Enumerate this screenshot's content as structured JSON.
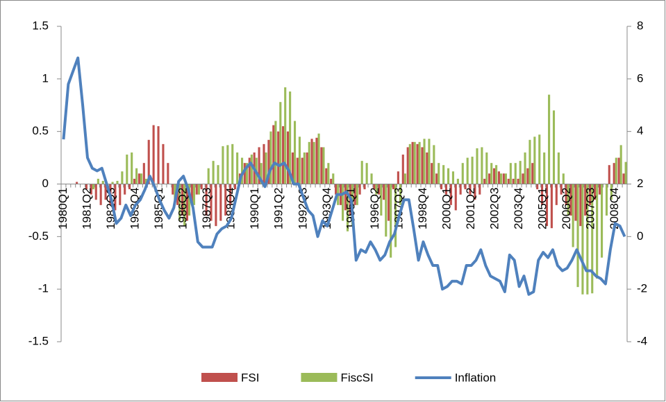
{
  "chart_data": {
    "type": "bar-line",
    "categories": [
      "1980Q1",
      null,
      null,
      null,
      null,
      "1981Q2",
      null,
      null,
      null,
      null,
      "1982Q3",
      null,
      null,
      null,
      null,
      "1983Q4",
      null,
      null,
      null,
      null,
      "1985Q1",
      null,
      null,
      null,
      null,
      "1986Q2",
      null,
      null,
      null,
      null,
      "1987Q3",
      null,
      null,
      null,
      null,
      "1988Q4",
      null,
      null,
      null,
      null,
      "1990Q1",
      null,
      null,
      null,
      null,
      "1991Q2",
      null,
      null,
      null,
      null,
      "1992Q3",
      null,
      null,
      null,
      null,
      "1993Q4",
      null,
      null,
      null,
      null,
      "1995Q1",
      null,
      null,
      null,
      null,
      "1996Q2",
      null,
      null,
      null,
      null,
      "1997Q3",
      null,
      null,
      null,
      null,
      "1998Q4",
      null,
      null,
      null,
      null,
      "2000Q1",
      null,
      null,
      null,
      null,
      "2001Q2",
      null,
      null,
      null,
      null,
      "2002Q3",
      null,
      null,
      null,
      null,
      "2003Q4",
      null,
      null,
      null,
      null,
      "2005Q1",
      null,
      null,
      null,
      null,
      "2006Q2",
      null,
      null,
      null,
      null,
      "2007Q3",
      null,
      null,
      null,
      null,
      "2008Q4",
      null,
      null
    ],
    "series": [
      {
        "name": "FSI",
        "color": "#c0504d",
        "kind": "bar",
        "values": [
          0,
          0,
          0,
          0.02,
          0,
          -0.05,
          -0.1,
          -0.15,
          -0.2,
          -0.15,
          -0.2,
          -0.25,
          -0.2,
          -0.1,
          -0.05,
          0.05,
          0.1,
          0.2,
          0.42,
          0.56,
          0.55,
          0.38,
          0.2,
          -0.1,
          -0.2,
          -0.3,
          -0.35,
          -0.2,
          -0.1,
          -0.05,
          -0.3,
          -0.35,
          -0.4,
          -0.35,
          -0.3,
          -0.2,
          -0.05,
          0.1,
          0.2,
          0.25,
          0.3,
          0.35,
          0.38,
          0.42,
          0.56,
          0.5,
          0.55,
          0.5,
          0.3,
          0.25,
          0.25,
          0.3,
          0.43,
          0.44,
          0.35,
          0.15,
          0.05,
          -0.1,
          -0.2,
          -0.25,
          -0.3,
          -0.2,
          -0.1,
          -0.05,
          0,
          -0.05,
          -0.1,
          -0.15,
          -0.35,
          -0.05,
          0.12,
          0.28,
          0.35,
          0.4,
          0.38,
          0.35,
          0.3,
          0.2,
          0.1,
          -0.05,
          -0.1,
          -0.2,
          -0.25,
          -0.1,
          -0.05,
          -0.1,
          -0.15,
          -0.1,
          0.05,
          0.1,
          0.15,
          0.12,
          0.1,
          0.05,
          0.05,
          0.05,
          0.1,
          0.15,
          0.2,
          -0.05,
          -0.2,
          -0.4,
          -0.42,
          -0.2,
          -0.1,
          -0.2,
          -0.3,
          -0.35,
          -0.4,
          -0.3,
          -0.2,
          -0.15,
          -0.1,
          0,
          0.18,
          0.2,
          0.25,
          0.1
        ]
      },
      {
        "name": "FiscSI",
        "color": "#9bbb59",
        "kind": "bar",
        "values": [
          0,
          0,
          0,
          0,
          0,
          0,
          -0.05,
          0.05,
          0.03,
          0,
          0.02,
          0.03,
          0.12,
          0.28,
          0.3,
          0.15,
          0.1,
          0.05,
          0,
          0,
          0,
          0,
          0,
          -0.15,
          -0.35,
          -0.4,
          -0.3,
          -0.2,
          -0.1,
          0,
          0.15,
          0.22,
          0.18,
          0.36,
          0.37,
          0.38,
          0.3,
          0.25,
          0.2,
          0.28,
          0.25,
          0.2,
          0.3,
          0.5,
          0.6,
          0.78,
          0.92,
          0.88,
          0.6,
          0.45,
          0.3,
          0.4,
          0.4,
          0.48,
          0.35,
          0.2,
          0.1,
          -0.2,
          -0.35,
          -0.45,
          -0.4,
          -0.2,
          0.22,
          0.2,
          0.1,
          -0.1,
          -0.3,
          -0.5,
          -0.7,
          -0.6,
          -0.2,
          0.1,
          0.38,
          0.4,
          0.4,
          0.43,
          0.43,
          0.37,
          0.2,
          0.18,
          0.15,
          0.12,
          0.05,
          0.2,
          0.25,
          0.26,
          0.34,
          0.35,
          0.3,
          0.2,
          0.18,
          0.1,
          0.1,
          0.2,
          0.2,
          0.22,
          0.3,
          0.42,
          0.45,
          0.47,
          0.3,
          0.85,
          0.7,
          0.3,
          0.1,
          -0.3,
          -0.6,
          -0.98,
          -1.05,
          -1.05,
          -1.04,
          -0.9,
          -0.7,
          -0.3,
          -0.15,
          0.25,
          0.37,
          0.21
        ]
      },
      {
        "name": "Inflation",
        "color": "#4f81bd",
        "kind": "line",
        "axis": "y2",
        "values": [
          3.7,
          5.8,
          6.3,
          6.8,
          5.0,
          3.0,
          2.6,
          2.5,
          2.6,
          2.0,
          1.4,
          0.5,
          0.7,
          1.2,
          0.8,
          1.2,
          1.4,
          1.8,
          2.3,
          1.9,
          1.4,
          1.0,
          0.7,
          1.1,
          2.1,
          2.3,
          1.8,
          1.1,
          -0.2,
          -0.4,
          -0.4,
          -0.4,
          0.1,
          0.3,
          0.4,
          0.7,
          1.5,
          2.3,
          2.6,
          2.8,
          2.5,
          2.2,
          1.9,
          2.5,
          2.8,
          2.7,
          2.8,
          2.5,
          2.0,
          2.0,
          1.5,
          1.0,
          0.8,
          0.0,
          0.6,
          0.4,
          1.0,
          1.6,
          1.6,
          1.7,
          1.4,
          -0.9,
          -0.5,
          -0.6,
          -0.2,
          -0.5,
          -0.9,
          -0.7,
          -0.2,
          0.1,
          0.8,
          1.4,
          1.4,
          0.3,
          -0.9,
          -0.2,
          -0.7,
          -1.1,
          -1.1,
          -2.0,
          -1.9,
          -1.7,
          -1.7,
          -1.8,
          -1.1,
          -1.1,
          -0.9,
          -0.5,
          -1.1,
          -1.5,
          -1.6,
          -1.7,
          -2.1,
          -0.7,
          -0.9,
          -1.9,
          -1.5,
          -2.2,
          -2.1,
          -0.9,
          -0.6,
          -0.8,
          -0.5,
          -1.1,
          -1.3,
          -1.2,
          -0.9,
          -0.5,
          -0.9,
          -1.3,
          -1.3,
          -1.5,
          -1.6,
          -1.8,
          -0.5,
          0.5,
          0.4,
          0.0
        ]
      }
    ],
    "ylim": [
      -1.5,
      1.5
    ],
    "yticks": [
      -1.5,
      -1,
      -0.5,
      0,
      0.5,
      1,
      1.5
    ],
    "y2lim": [
      -4,
      8
    ],
    "y2ticks": [
      -4,
      -2,
      0,
      2,
      4,
      6,
      8
    ],
    "legend": "bottom",
    "grid": false
  }
}
